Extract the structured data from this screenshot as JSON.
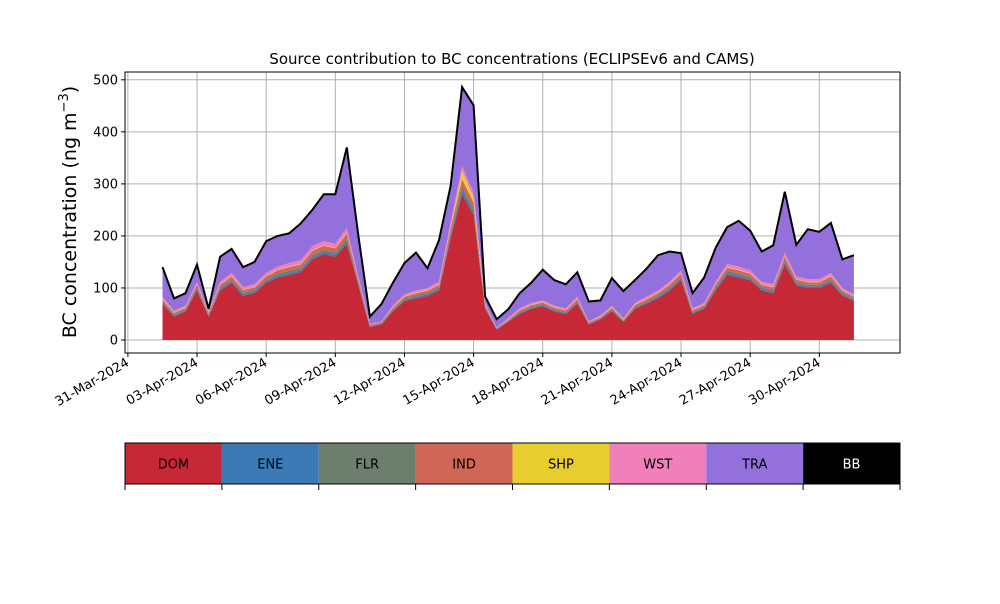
{
  "chart_data": {
    "type": "area",
    "title": "Source contribution to BC concentrations (ECLIPSEv6 and CAMS)",
    "ylabel": "BC concentration (ng m",
    "ylabel_sup": "−3",
    "ylabel_close": ")",
    "xlabel": "",
    "ylim": [
      -25,
      515
    ],
    "xlim": [
      "2024-03-30T21:00",
      "2024-05-03T12:00"
    ],
    "grid": true,
    "stacked": true,
    "y_ticks": [
      0,
      100,
      200,
      300,
      400,
      500
    ],
    "x_ticks": [
      "31-Mar-2024",
      "03-Apr-2024",
      "06-Apr-2024",
      "09-Apr-2024",
      "12-Apr-2024",
      "15-Apr-2024",
      "18-Apr-2024",
      "21-Apr-2024",
      "24-Apr-2024",
      "27-Apr-2024",
      "30-Apr-2024"
    ],
    "x": [
      "2024-04-01T12:00",
      "2024-04-02T00:00",
      "2024-04-02T12:00",
      "2024-04-03T00:00",
      "2024-04-03T12:00",
      "2024-04-04T00:00",
      "2024-04-04T12:00",
      "2024-04-05T00:00",
      "2024-04-05T12:00",
      "2024-04-06T00:00",
      "2024-04-06T12:00",
      "2024-04-07T00:00",
      "2024-04-07T12:00",
      "2024-04-08T00:00",
      "2024-04-08T12:00",
      "2024-04-09T00:00",
      "2024-04-09T12:00",
      "2024-04-10T00:00",
      "2024-04-10T12:00",
      "2024-04-11T00:00",
      "2024-04-11T12:00",
      "2024-04-12T00:00",
      "2024-04-12T12:00",
      "2024-04-13T00:00",
      "2024-04-13T12:00",
      "2024-04-14T00:00",
      "2024-04-14T12:00",
      "2024-04-15T00:00",
      "2024-04-15T12:00",
      "2024-04-16T00:00",
      "2024-04-16T12:00",
      "2024-04-17T00:00",
      "2024-04-17T12:00",
      "2024-04-18T00:00",
      "2024-04-18T12:00",
      "2024-04-19T00:00",
      "2024-04-19T12:00",
      "2024-04-20T00:00",
      "2024-04-20T12:00",
      "2024-04-21T00:00",
      "2024-04-21T12:00",
      "2024-04-22T00:00",
      "2024-04-22T12:00",
      "2024-04-23T00:00",
      "2024-04-23T12:00",
      "2024-04-24T00:00",
      "2024-04-24T12:00",
      "2024-04-25T00:00",
      "2024-04-25T12:00",
      "2024-04-26T00:00",
      "2024-04-26T12:00",
      "2024-04-27T00:00",
      "2024-04-27T12:00",
      "2024-04-28T00:00",
      "2024-04-28T12:00",
      "2024-04-29T00:00",
      "2024-04-29T12:00",
      "2024-04-30T00:00",
      "2024-04-30T12:00",
      "2024-05-01T00:00",
      "2024-05-01T12:00"
    ],
    "series": [
      {
        "name": "DOM",
        "color": "#c62836",
        "values": [
          70,
          45,
          55,
          95,
          45,
          95,
          110,
          85,
          90,
          110,
          120,
          125,
          130,
          155,
          165,
          160,
          185,
          105,
          25,
          30,
          55,
          75,
          80,
          85,
          95,
          195,
          280,
          240,
          60,
          20,
          35,
          50,
          60,
          65,
          55,
          50,
          70,
          30,
          40,
          55,
          35,
          60,
          70,
          80,
          95,
          115,
          50,
          60,
          95,
          125,
          120,
          115,
          95,
          90,
          145,
          105,
          100,
          100,
          110,
          85,
          75
        ]
      },
      {
        "name": "ENE",
        "color": "#3b7ab4",
        "values": [
          2,
          2,
          2,
          3,
          2,
          3,
          3,
          3,
          3,
          3,
          4,
          4,
          4,
          4,
          4,
          4,
          5,
          3,
          1,
          1,
          2,
          2,
          3,
          3,
          3,
          5,
          8,
          6,
          2,
          1,
          1,
          2,
          2,
          2,
          2,
          2,
          2,
          1,
          1,
          2,
          1,
          2,
          2,
          3,
          3,
          3,
          2,
          2,
          3,
          4,
          4,
          3,
          3,
          3,
          4,
          3,
          3,
          3,
          3,
          3,
          2
        ]
      },
      {
        "name": "FLR",
        "color": "#6d7e6e",
        "values": [
          2,
          2,
          2,
          3,
          2,
          3,
          3,
          3,
          3,
          3,
          4,
          4,
          4,
          4,
          4,
          4,
          5,
          3,
          1,
          1,
          2,
          2,
          3,
          3,
          3,
          5,
          8,
          6,
          2,
          1,
          1,
          2,
          2,
          2,
          2,
          2,
          2,
          1,
          1,
          2,
          1,
          2,
          2,
          3,
          3,
          3,
          2,
          2,
          3,
          4,
          4,
          3,
          3,
          3,
          4,
          3,
          3,
          3,
          3,
          3,
          2
        ]
      },
      {
        "name": "IND",
        "color": "#cf6656",
        "values": [
          4,
          3,
          3,
          5,
          3,
          5,
          6,
          5,
          5,
          6,
          6,
          7,
          7,
          8,
          8,
          8,
          9,
          5,
          2,
          2,
          3,
          4,
          4,
          4,
          5,
          10,
          13,
          12,
          3,
          1,
          2,
          3,
          3,
          3,
          3,
          3,
          4,
          2,
          2,
          3,
          2,
          3,
          4,
          4,
          5,
          6,
          3,
          3,
          5,
          6,
          6,
          6,
          5,
          5,
          7,
          5,
          5,
          5,
          6,
          4,
          4
        ]
      },
      {
        "name": "SHP",
        "color": "#e8cd2e",
        "values": [
          1,
          1,
          1,
          1,
          1,
          1,
          1,
          1,
          1,
          1,
          1,
          1,
          1,
          1,
          1,
          1,
          2,
          1,
          0,
          0,
          1,
          1,
          1,
          1,
          1,
          3,
          15,
          10,
          1,
          0,
          1,
          1,
          1,
          1,
          1,
          1,
          1,
          0,
          1,
          1,
          1,
          1,
          1,
          1,
          1,
          1,
          1,
          1,
          1,
          1,
          1,
          1,
          1,
          1,
          1,
          1,
          1,
          1,
          1,
          1,
          1
        ]
      },
      {
        "name": "WST",
        "color": "#f07fba",
        "values": [
          4,
          3,
          3,
          5,
          3,
          5,
          6,
          5,
          5,
          6,
          6,
          7,
          7,
          8,
          8,
          8,
          9,
          5,
          2,
          2,
          3,
          4,
          4,
          4,
          5,
          8,
          10,
          9,
          3,
          1,
          2,
          3,
          3,
          3,
          3,
          3,
          4,
          2,
          2,
          3,
          2,
          3,
          4,
          4,
          5,
          6,
          3,
          3,
          5,
          6,
          6,
          6,
          5,
          5,
          7,
          5,
          5,
          5,
          6,
          4,
          4
        ]
      },
      {
        "name": "TRA",
        "color": "#9370db",
        "values": [
          57,
          24,
          24,
          33,
          4,
          48,
          46,
          38,
          43,
          61,
          59,
          57,
          71,
          70,
          90,
          95,
          155,
          78,
          14,
          33,
          44,
          60,
          73,
          38,
          80,
          70,
          152,
          168,
          13,
          16,
          17,
          29,
          39,
          59,
          49,
          46,
          47,
          38,
          29,
          53,
          52,
          44,
          54,
          68,
          58,
          33,
          29,
          49,
          65,
          71,
          88,
          76,
          58,
          75,
          117,
          61,
          96,
          91,
          96,
          55,
          75
        ]
      },
      {
        "name": "BB",
        "color": "#000000",
        "values": [
          0,
          0,
          0,
          0,
          0,
          0,
          0,
          0,
          0,
          0,
          0,
          0,
          0,
          0,
          0,
          0,
          0,
          0,
          0,
          0,
          0,
          0,
          0,
          0,
          0,
          0,
          0,
          0,
          0,
          0,
          0,
          0,
          0,
          0,
          0,
          0,
          0,
          0,
          0,
          0,
          0,
          0,
          0,
          0,
          0,
          0,
          0,
          0,
          0,
          0,
          0,
          0,
          0,
          0,
          0,
          0,
          0,
          0,
          0,
          0,
          0
        ]
      }
    ],
    "total_line_color": "#000000",
    "legend_position": "below"
  }
}
